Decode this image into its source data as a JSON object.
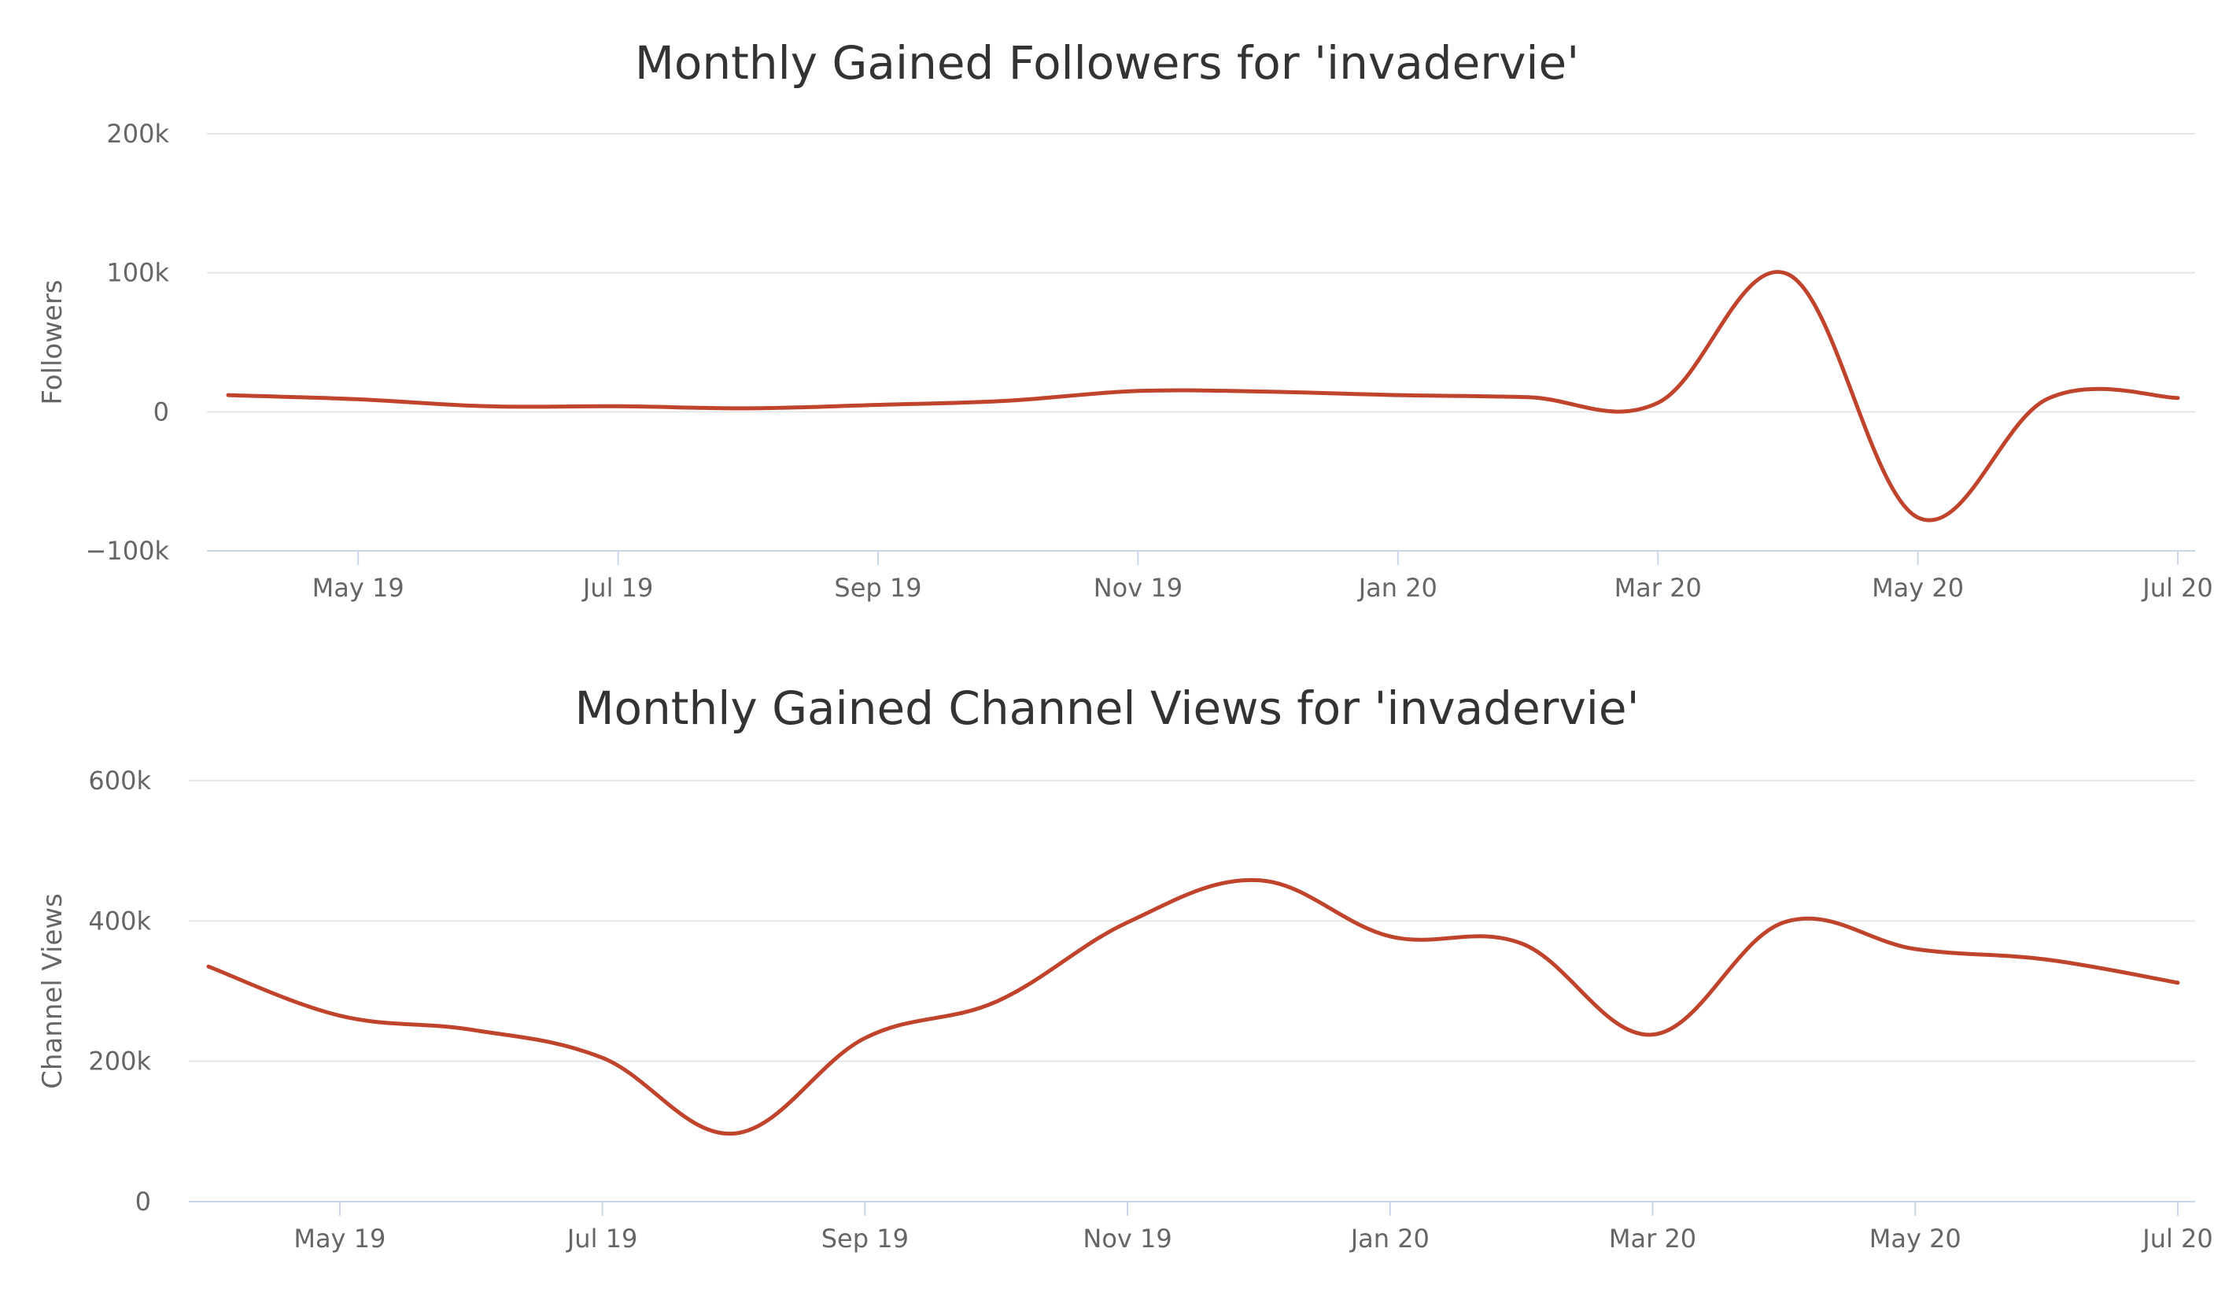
{
  "chart_data": [
    {
      "type": "line",
      "title": "Monthly Gained Followers for 'invadervie'",
      "ylabel": "Followers",
      "xlabel": "",
      "ylim": [
        -100000,
        200000
      ],
      "y_ticks": [
        {
          "value": 200000,
          "label": "200k"
        },
        {
          "value": 100000,
          "label": "100k"
        },
        {
          "value": 0,
          "label": "0"
        },
        {
          "value": -100000,
          "label": "−100k"
        }
      ],
      "x_ticks": [
        "May 19",
        "Jul 19",
        "Sep 19",
        "Nov 19",
        "Jan 20",
        "Mar 20",
        "May 20",
        "Jul 20"
      ],
      "x": [
        "2019-04",
        "2019-05",
        "2019-06",
        "2019-07",
        "2019-08",
        "2019-09",
        "2019-10",
        "2019-11",
        "2019-12",
        "2020-01",
        "2020-02",
        "2020-03",
        "2020-04",
        "2020-05",
        "2020-06",
        "2020-07"
      ],
      "series": [
        {
          "values": [
            12000,
            9000,
            4000,
            4000,
            2500,
            5000,
            8000,
            15000,
            14500,
            12000,
            10500,
            6500,
            99000,
            -76000,
            9500,
            10000
          ]
        }
      ],
      "grid": true,
      "legend": false,
      "color": "#c0432c"
    },
    {
      "type": "line",
      "title": "Monthly Gained Channel Views for 'invadervie'",
      "ylabel": "Channel Views",
      "xlabel": "",
      "ylim": [
        0,
        600000
      ],
      "y_ticks": [
        {
          "value": 600000,
          "label": "600k"
        },
        {
          "value": 400000,
          "label": "400k"
        },
        {
          "value": 200000,
          "label": "200k"
        },
        {
          "value": 0,
          "label": "0"
        }
      ],
      "x_ticks": [
        "May 19",
        "Jul 19",
        "Sep 19",
        "Nov 19",
        "Jan 20",
        "Mar 20",
        "May 20",
        "Jul 20"
      ],
      "x": [
        "2019-04",
        "2019-05",
        "2019-06",
        "2019-07",
        "2019-08",
        "2019-09",
        "2019-10",
        "2019-11",
        "2019-12",
        "2020-01",
        "2020-02",
        "2020-03",
        "2020-04",
        "2020-05",
        "2020-06",
        "2020-07"
      ],
      "series": [
        {
          "values": [
            335000,
            265000,
            245000,
            205000,
            97000,
            233000,
            285000,
            398000,
            458000,
            378000,
            368000,
            238000,
            398000,
            360000,
            345000,
            312000
          ]
        }
      ],
      "grid": true,
      "legend": false,
      "color": "#c0432c"
    }
  ]
}
